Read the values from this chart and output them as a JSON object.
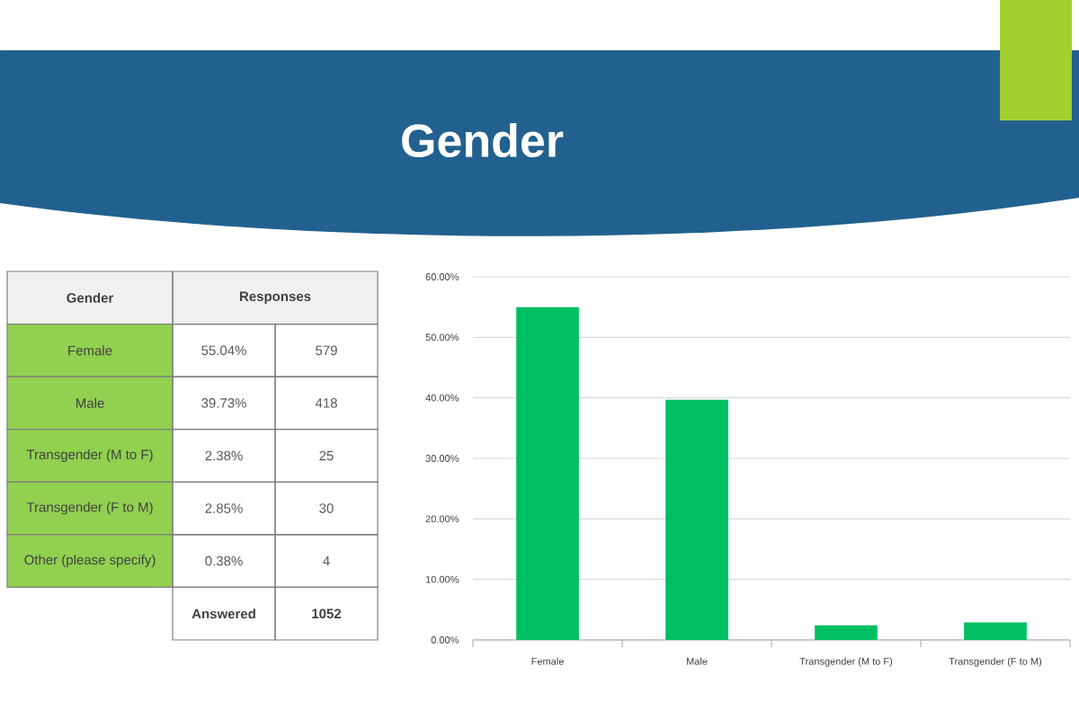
{
  "chart_data": [
    {
      "type": "other",
      "ylabel": "Gender",
      "xlabel": "Responses",
      "categories": [
        null,
        null
      ],
      "y_categories": [
        "Female",
        "Male",
        "Transgender (M to F)",
        "Transgender (F to M)",
        "Other (please specify)",
        null
      ],
      "cell_labels": [
        [
          "55.04%",
          "579"
        ],
        [
          "39.73%",
          "418"
        ],
        [
          "2.38%",
          "25"
        ],
        [
          "2.85%",
          "30"
        ],
        [
          "0.38%",
          "4"
        ],
        [
          "Answered",
          "1052"
        ]
      ],
      "color": "#92d050"
    },
    {
      "type": "bar",
      "title": "Gender",
      "categories": [
        "Female",
        "Male",
        "Transgender (M to F)",
        "Transgender (F to M)"
      ],
      "values": [
        55,
        39.7,
        2.4,
        2.9
      ],
      "color": "#00bf63",
      "ylim": [
        0,
        60
      ],
      "yticks": [
        {
          "value": 0,
          "label": "0.00%"
        },
        {
          "value": 10,
          "label": "10.00%"
        },
        {
          "value": 20,
          "label": "20.00%"
        },
        {
          "value": 30,
          "label": "30.00%"
        },
        {
          "value": 40,
          "label": "40.00%"
        },
        {
          "value": 50,
          "label": "50.00%"
        },
        {
          "value": 60,
          "label": "60.00%"
        }
      ],
      "grid": "y"
    }
  ]
}
